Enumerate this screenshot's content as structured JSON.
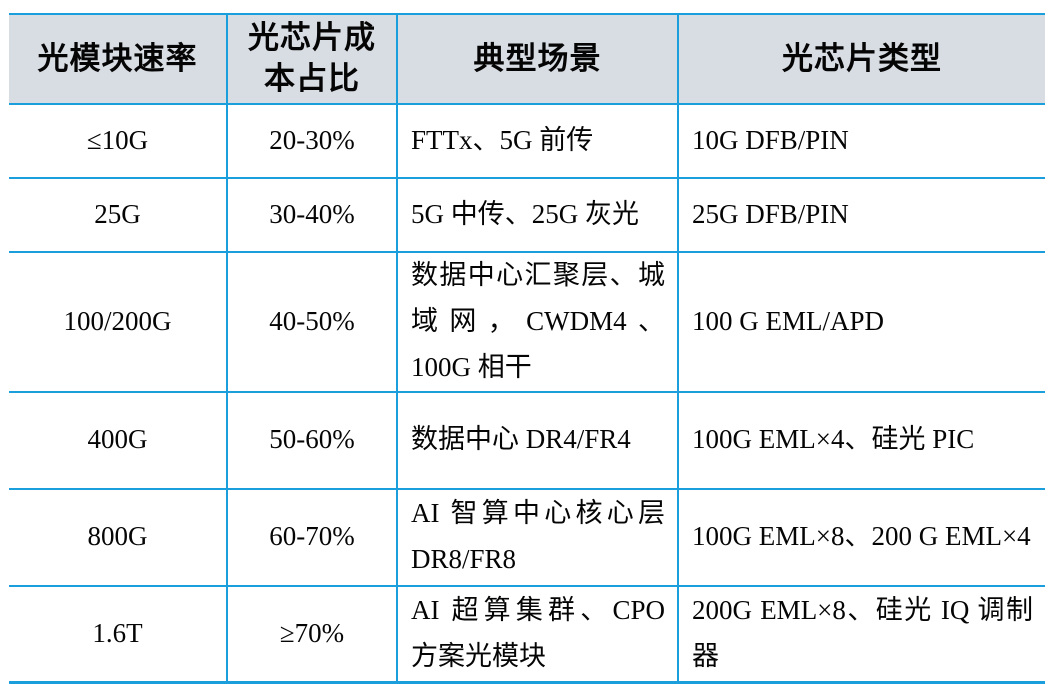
{
  "table": {
    "columns": [
      {
        "label": "光模块速率"
      },
      {
        "label": "光芯片成本占比"
      },
      {
        "label": "典型场景"
      },
      {
        "label": "光芯片类型"
      }
    ],
    "rows": [
      {
        "speed": "≤10G",
        "cost_share": "20-30%",
        "scenario": "FTTx、5G 前传",
        "chip_type": "10G DFB/PIN"
      },
      {
        "speed": "25G",
        "cost_share": "30-40%",
        "scenario": "5G 中传、25G 灰光",
        "chip_type": "25G DFB/PIN"
      },
      {
        "speed": "100/200G",
        "cost_share": "40-50%",
        "scenario": "数据中心汇聚层、城域网，CWDM4、100G 相干",
        "chip_type": "100 G EML/APD"
      },
      {
        "speed": "400G",
        "cost_share": "50-60%",
        "scenario": "数据中心 DR4/FR4",
        "chip_type": "100G EML×4、硅光 PIC"
      },
      {
        "speed": "800G",
        "cost_share": "60-70%",
        "scenario": "AI 智算中心核心层 DR8/FR8",
        "chip_type": "100G EML×8、200 G EML×4"
      },
      {
        "speed": "1.6T",
        "cost_share": "≥70%",
        "scenario": "AI 超算集群、CPO 方案光模块",
        "chip_type": "200G EML×8、硅光 IQ 调制器"
      }
    ],
    "colors": {
      "border_blue": "#1b9fdc",
      "header_background": "#d8dce3",
      "body_background": "#ffffff",
      "text": "#050505"
    }
  }
}
